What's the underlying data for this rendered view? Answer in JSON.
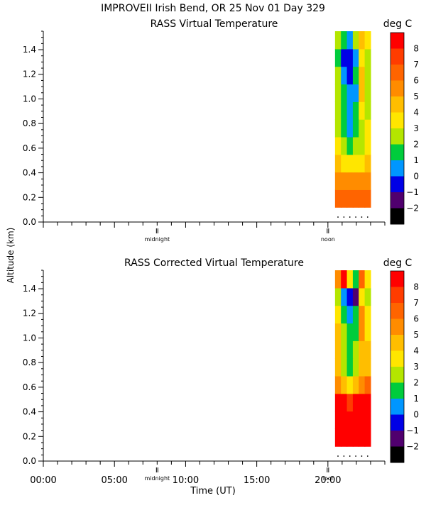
{
  "header": {
    "title": "IMPROVEII  Irish Bend, OR  25 Nov 01 Day 329"
  },
  "shared": {
    "ylabel": "Altitude (km)",
    "xlabel": "Time (UT)",
    "markers": {
      "midnight": "midnight",
      "noon": "noon"
    },
    "colorbar_unit": "deg C"
  },
  "chart_data": [
    {
      "type": "heatmap",
      "title": "RASS Virtual Temperature",
      "xlabel": "",
      "ylabel": "Altitude (km)",
      "xlim": [
        0,
        24
      ],
      "ylim": [
        0,
        1.55
      ],
      "x_ticks": [],
      "y_ticks": [
        "0.0",
        "0.2",
        "0.4",
        "0.6",
        "0.8",
        "1.0",
        "1.2",
        "1.4"
      ],
      "x_markers": [
        {
          "x": 8.0,
          "label": "midnight"
        },
        {
          "x": 20.0,
          "label": "noon"
        }
      ],
      "data_x_range": [
        20.5,
        23.0
      ],
      "data_y_range": [
        0.12,
        1.55
      ],
      "x": [
        20.5,
        21.0,
        21.5,
        22.0,
        22.5,
        23.0
      ],
      "y": [
        0.15,
        0.3,
        0.45,
        0.6,
        0.75,
        0.9,
        1.05,
        1.2,
        1.35,
        1.5
      ],
      "values": [
        [
          6.5,
          6.5,
          6.5,
          6.5,
          6.5,
          6.5
        ],
        [
          5.5,
          5.5,
          5.5,
          5.5,
          5.5,
          5.5
        ],
        [
          5,
          4,
          3.5,
          3.5,
          4,
          5
        ],
        [
          4,
          3,
          2,
          2.5,
          3,
          4
        ],
        [
          3,
          2,
          1,
          2,
          3,
          3.5
        ],
        [
          3,
          1.5,
          0.5,
          1.5,
          3.5,
          3
        ],
        [
          3,
          2,
          0.5,
          1,
          4.5,
          3
        ],
        [
          3,
          1,
          0,
          1.5,
          5,
          3
        ],
        [
          2,
          0,
          -0.5,
          1,
          4,
          3
        ],
        [
          3,
          2,
          1,
          3,
          5,
          4
        ]
      ],
      "colorbar": {
        "label": "deg C",
        "ticks": [
          "8",
          "7",
          "6",
          "5",
          "4",
          "3",
          "2",
          "1",
          "0",
          "−1",
          "−2"
        ],
        "colors": [
          "#ff0000",
          "#ff3c00",
          "#ff6400",
          "#ff8c00",
          "#ffbe00",
          "#ffe600",
          "#b4e600",
          "#00cc3c",
          "#0096ff",
          "#0000e6",
          "#50006e",
          "#000000"
        ]
      }
    },
    {
      "type": "heatmap",
      "title": "RASS Corrected Virtual Temperature",
      "xlabel": "Time (UT)",
      "ylabel": "Altitude (km)",
      "xlim": [
        0,
        24
      ],
      "ylim": [
        0,
        1.55
      ],
      "x_ticks": [
        "00:00",
        "05:00",
        "10:00",
        "15:00",
        "20:00"
      ],
      "x_tick_values": [
        0,
        5,
        10,
        15,
        20
      ],
      "y_ticks": [
        "0.0",
        "0.2",
        "0.4",
        "0.6",
        "0.8",
        "1.0",
        "1.2",
        "1.4"
      ],
      "x_markers": [
        {
          "x": 8.0,
          "label": "midnight"
        },
        {
          "x": 20.0,
          "label": "noon"
        }
      ],
      "data_x_range": [
        20.5,
        23.0
      ],
      "data_y_range": [
        0.12,
        1.55
      ],
      "x": [
        20.5,
        21.0,
        21.5,
        22.0,
        22.5,
        23.0
      ],
      "y": [
        0.15,
        0.3,
        0.45,
        0.6,
        0.75,
        0.9,
        1.05,
        1.2,
        1.35,
        1.5
      ],
      "values": [
        [
          8.5,
          8.5,
          8.5,
          8.5,
          8.5,
          8.5
        ],
        [
          8.5,
          8.5,
          8.5,
          8.5,
          8.5,
          8.5
        ],
        [
          8,
          8,
          7.5,
          8,
          8,
          8
        ],
        [
          6,
          4.5,
          3.5,
          5,
          6,
          6.5
        ],
        [
          5,
          3,
          2,
          3,
          5,
          5
        ],
        [
          5,
          3,
          2,
          2.5,
          4.5,
          4.5
        ],
        [
          4.5,
          2.5,
          1.5,
          2,
          5.5,
          4
        ],
        [
          4,
          2,
          1,
          1.5,
          6,
          4
        ],
        [
          3,
          1,
          0,
          -1,
          4,
          3
        ],
        [
          6,
          8,
          4,
          2,
          7,
          4
        ]
      ],
      "colorbar": {
        "label": "deg C",
        "ticks": [
          "8",
          "7",
          "6",
          "5",
          "4",
          "3",
          "2",
          "1",
          "0",
          "−1",
          "−2"
        ],
        "colors": [
          "#ff0000",
          "#ff3c00",
          "#ff6400",
          "#ff8c00",
          "#ffbe00",
          "#ffe600",
          "#b4e600",
          "#00cc3c",
          "#0096ff",
          "#0000e6",
          "#50006e",
          "#000000"
        ]
      }
    }
  ]
}
